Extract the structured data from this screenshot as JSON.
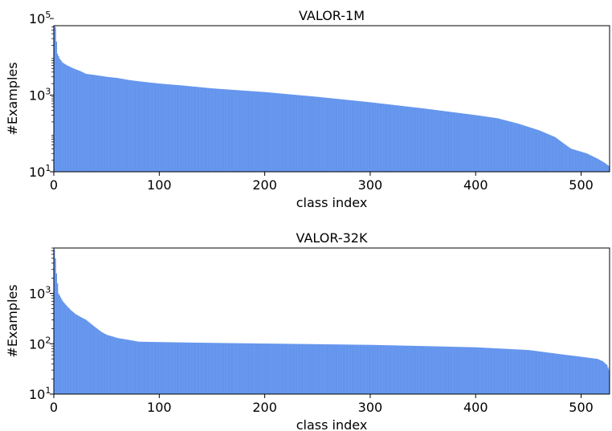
{
  "chart_data": [
    {
      "type": "bar",
      "title": "VALOR-1M",
      "xlabel": "class index",
      "ylabel": "#Examples",
      "y_scale": "log",
      "xlim": [
        0,
        527
      ],
      "ylim": [
        10,
        65000
      ],
      "xticks": [
        0,
        100,
        200,
        300,
        400,
        500
      ],
      "yticks": [
        {
          "value": 10,
          "base": "10",
          "exp": "1"
        },
        {
          "value": 1000,
          "base": "10",
          "exp": "3"
        },
        {
          "value": 100000,
          "base": "10",
          "exp": "5"
        }
      ],
      "color": "#6495ED",
      "grid": false,
      "legend": "none",
      "num_classes": 527,
      "profile": [
        [
          0,
          65000
        ],
        [
          1,
          60000
        ],
        [
          2,
          25000
        ],
        [
          3,
          12000
        ],
        [
          5,
          9000
        ],
        [
          8,
          7000
        ],
        [
          12,
          6000
        ],
        [
          18,
          5000
        ],
        [
          25,
          4200
        ],
        [
          30,
          3600
        ],
        [
          40,
          3300
        ],
        [
          50,
          3000
        ],
        [
          60,
          2800
        ],
        [
          70,
          2500
        ],
        [
          80,
          2300
        ],
        [
          100,
          2000
        ],
        [
          120,
          1800
        ],
        [
          150,
          1500
        ],
        [
          200,
          1200
        ],
        [
          250,
          900
        ],
        [
          300,
          650
        ],
        [
          350,
          450
        ],
        [
          400,
          300
        ],
        [
          420,
          250
        ],
        [
          440,
          180
        ],
        [
          460,
          120
        ],
        [
          475,
          80
        ],
        [
          485,
          50
        ],
        [
          490,
          40
        ],
        [
          505,
          30
        ],
        [
          515,
          22
        ],
        [
          522,
          17
        ],
        [
          526,
          14
        ]
      ]
    },
    {
      "type": "bar",
      "title": "VALOR-32K",
      "xlabel": "class index",
      "ylabel": "#Examples",
      "y_scale": "log",
      "xlim": [
        0,
        527
      ],
      "ylim": [
        10,
        8000
      ],
      "xticks": [
        0,
        100,
        200,
        300,
        400,
        500
      ],
      "yticks": [
        {
          "value": 10,
          "base": "10",
          "exp": "1"
        },
        {
          "value": 100,
          "base": "10",
          "exp": "2"
        },
        {
          "value": 1000,
          "base": "10",
          "exp": "3"
        }
      ],
      "color": "#6495ED",
      "grid": false,
      "legend": "none",
      "num_classes": 527,
      "profile": [
        [
          0,
          7500
        ],
        [
          1,
          5000
        ],
        [
          2,
          2500
        ],
        [
          4,
          1000
        ],
        [
          8,
          700
        ],
        [
          12,
          560
        ],
        [
          16,
          460
        ],
        [
          20,
          390
        ],
        [
          25,
          340
        ],
        [
          30,
          300
        ],
        [
          38,
          220
        ],
        [
          45,
          170
        ],
        [
          50,
          150
        ],
        [
          55,
          140
        ],
        [
          60,
          130
        ],
        [
          70,
          120
        ],
        [
          80,
          110
        ],
        [
          100,
          108
        ],
        [
          150,
          104
        ],
        [
          200,
          101
        ],
        [
          250,
          98
        ],
        [
          300,
          95
        ],
        [
          350,
          90
        ],
        [
          400,
          85
        ],
        [
          450,
          75
        ],
        [
          480,
          62
        ],
        [
          500,
          55
        ],
        [
          515,
          50
        ],
        [
          520,
          45
        ],
        [
          524,
          38
        ],
        [
          526,
          30
        ]
      ]
    }
  ]
}
